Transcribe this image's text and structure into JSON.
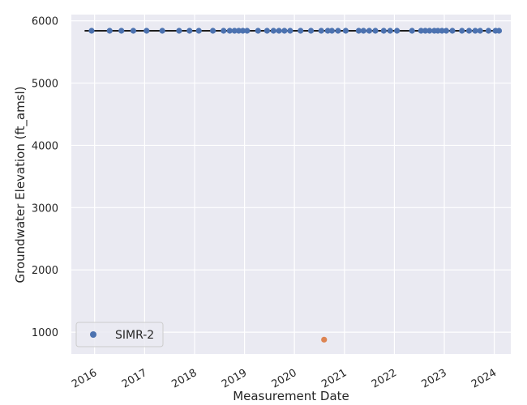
{
  "chart_data": {
    "type": "scatter",
    "title": "",
    "xlabel": "Measurement Date",
    "ylabel": "Groundwater Elevation (ft_amsl)",
    "xlim": [
      "2015-07-15",
      "2024-05-01"
    ],
    "ylim": [
      650,
      6100
    ],
    "x_ticks": [
      {
        "date": "2016-01-01",
        "label": "2016"
      },
      {
        "date": "2017-01-01",
        "label": "2017"
      },
      {
        "date": "2018-01-01",
        "label": "2018"
      },
      {
        "date": "2019-01-01",
        "label": "2019"
      },
      {
        "date": "2020-01-01",
        "label": "2020"
      },
      {
        "date": "2021-01-01",
        "label": "2021"
      },
      {
        "date": "2022-01-01",
        "label": "2022"
      },
      {
        "date": "2023-01-01",
        "label": "2023"
      },
      {
        "date": "2024-01-01",
        "label": "2024"
      }
    ],
    "y_ticks": [
      {
        "value": 1000,
        "label": "1000"
      },
      {
        "value": 2000,
        "label": "2000"
      },
      {
        "value": 3000,
        "label": "3000"
      },
      {
        "value": 4000,
        "label": "4000"
      },
      {
        "value": 5000,
        "label": "5000"
      },
      {
        "value": 6000,
        "label": "6000"
      }
    ],
    "grid": true,
    "legend_position": "lower-left",
    "series": [
      {
        "name": "SIMR-2",
        "color": "#4c72b0",
        "points": [
          {
            "x": "2015-12-10",
            "y": 5840
          },
          {
            "x": "2016-04-20",
            "y": 5840
          },
          {
            "x": "2016-07-15",
            "y": 5840
          },
          {
            "x": "2016-10-10",
            "y": 5840
          },
          {
            "x": "2017-01-15",
            "y": 5840
          },
          {
            "x": "2017-05-10",
            "y": 5840
          },
          {
            "x": "2017-09-10",
            "y": 5840
          },
          {
            "x": "2017-11-25",
            "y": 5840
          },
          {
            "x": "2018-02-01",
            "y": 5840
          },
          {
            "x": "2018-05-15",
            "y": 5840
          },
          {
            "x": "2018-08-01",
            "y": 5840
          },
          {
            "x": "2018-09-15",
            "y": 5840
          },
          {
            "x": "2018-10-20",
            "y": 5840
          },
          {
            "x": "2018-11-20",
            "y": 5840
          },
          {
            "x": "2018-12-20",
            "y": 5840
          },
          {
            "x": "2019-01-20",
            "y": 5840
          },
          {
            "x": "2019-04-10",
            "y": 5840
          },
          {
            "x": "2019-06-15",
            "y": 5840
          },
          {
            "x": "2019-08-01",
            "y": 5840
          },
          {
            "x": "2019-09-10",
            "y": 5840
          },
          {
            "x": "2019-10-20",
            "y": 5840
          },
          {
            "x": "2019-12-01",
            "y": 5840
          },
          {
            "x": "2020-02-15",
            "y": 5840
          },
          {
            "x": "2020-05-01",
            "y": 5840
          },
          {
            "x": "2020-07-15",
            "y": 5840
          },
          {
            "x": "2020-09-01",
            "y": 5840
          },
          {
            "x": "2020-10-01",
            "y": 5840
          },
          {
            "x": "2020-11-15",
            "y": 5840
          },
          {
            "x": "2021-01-10",
            "y": 5840
          },
          {
            "x": "2021-04-15",
            "y": 5840
          },
          {
            "x": "2021-05-20",
            "y": 5840
          },
          {
            "x": "2021-07-01",
            "y": 5840
          },
          {
            "x": "2021-08-15",
            "y": 5840
          },
          {
            "x": "2021-10-15",
            "y": 5840
          },
          {
            "x": "2021-12-01",
            "y": 5840
          },
          {
            "x": "2022-01-20",
            "y": 5840
          },
          {
            "x": "2022-05-10",
            "y": 5840
          },
          {
            "x": "2022-07-15",
            "y": 5840
          },
          {
            "x": "2022-08-15",
            "y": 5840
          },
          {
            "x": "2022-09-15",
            "y": 5840
          },
          {
            "x": "2022-10-20",
            "y": 5840
          },
          {
            "x": "2022-11-15",
            "y": 5840
          },
          {
            "x": "2022-12-15",
            "y": 5840
          },
          {
            "x": "2023-01-15",
            "y": 5840
          },
          {
            "x": "2023-03-01",
            "y": 5840
          },
          {
            "x": "2023-05-10",
            "y": 5840
          },
          {
            "x": "2023-07-01",
            "y": 5840
          },
          {
            "x": "2023-08-15",
            "y": 5840
          },
          {
            "x": "2023-09-20",
            "y": 5840
          },
          {
            "x": "2023-11-20",
            "y": 5840
          },
          {
            "x": "2024-01-10",
            "y": 5840
          },
          {
            "x": "2024-02-05",
            "y": 5840
          }
        ]
      },
      {
        "name": "",
        "color": "#dd8452",
        "points": [
          {
            "x": "2020-08-05",
            "y": 880
          }
        ]
      }
    ],
    "trend_line": {
      "color": "#000000",
      "x": [
        "2015-10-20",
        "2024-01-20"
      ],
      "y": [
        5840,
        5840
      ]
    }
  }
}
